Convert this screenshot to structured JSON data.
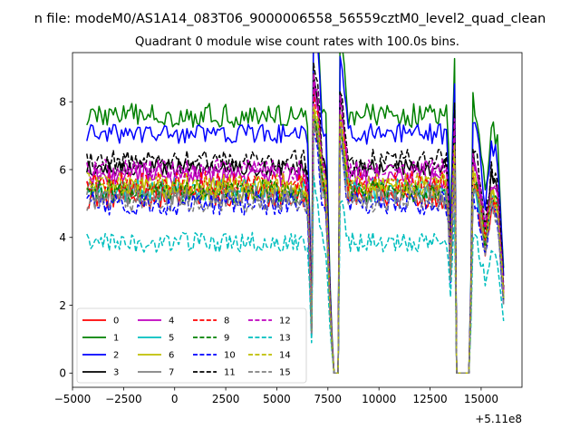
{
  "figure": {
    "suptitle": "n file: modeM0/AS1A14_083T06_9000006558_56559cztM0_level2_quad_clean",
    "offset_label": "+5.11e8"
  },
  "chart_data": {
    "type": "line",
    "title": "Quadrant 0 module wise count rates with 100.0s bins.",
    "xlabel": "",
    "ylabel": "",
    "xlim": [
      -5000,
      17000
    ],
    "ylim": [
      -0.42,
      9.45
    ],
    "x_offset": 511000000,
    "xticks": [
      -5000,
      -2500,
      0,
      2500,
      5000,
      7500,
      10000,
      12500,
      15000
    ],
    "xtick_labels": [
      "−5000",
      "−2500",
      "0",
      "2500",
      "5000",
      "7500",
      "10000",
      "12500",
      "15000"
    ],
    "yticks": [
      0,
      2,
      4,
      6,
      8
    ],
    "ytick_labels": [
      "0",
      "2",
      "4",
      "6",
      "8"
    ],
    "legend_position": "lower-left",
    "legend_columns": 4,
    "shape": {
      "x_start": -4300,
      "x_end": 16100,
      "step": 100,
      "description": "module count-rate envelope: common dips near 6700 and gaps (zero) near 7900 and 14000-14800",
      "anchor_x": [
        -4300,
        6400,
        6550,
        6700,
        6800,
        7000,
        7200,
        7400,
        7650,
        7800,
        8000,
        8100,
        8300,
        8500,
        11000,
        13350,
        13500,
        13700,
        13800,
        14450,
        14600,
        14800,
        15200,
        15500,
        15800,
        16100
      ],
      "anchor_f": [
        1.0,
        1.0,
        0.88,
        0.22,
        1.45,
        1.35,
        1.05,
        0.97,
        0.22,
        0.0,
        0.0,
        1.35,
        1.18,
        1.0,
        1.0,
        1.0,
        0.55,
        1.25,
        0.0,
        0.0,
        1.05,
        1.0,
        0.7,
        0.95,
        0.9,
        0.4
      ]
    },
    "series": [
      {
        "name": "0",
        "color": "#ff0000",
        "dash": "solid",
        "base": 5.2,
        "noise": 0.35
      },
      {
        "name": "1",
        "color": "#008000",
        "dash": "solid",
        "base": 7.6,
        "noise": 0.35
      },
      {
        "name": "2",
        "color": "#0000ff",
        "dash": "solid",
        "base": 7.05,
        "noise": 0.3
      },
      {
        "name": "3",
        "color": "#000000",
        "dash": "solid",
        "base": 6.05,
        "noise": 0.25
      },
      {
        "name": "4",
        "color": "#bf00bf",
        "dash": "solid",
        "base": 5.8,
        "noise": 0.35
      },
      {
        "name": "5",
        "color": "#00bfbf",
        "dash": "solid",
        "base": 5.4,
        "noise": 0.35
      },
      {
        "name": "6",
        "color": "#bfbf00",
        "dash": "solid",
        "base": 5.45,
        "noise": 0.35
      },
      {
        "name": "7",
        "color": "#808080",
        "dash": "solid",
        "base": 5.25,
        "noise": 0.35
      },
      {
        "name": "8",
        "color": "#ff0000",
        "dash": "dashed",
        "base": 5.6,
        "noise": 0.35
      },
      {
        "name": "9",
        "color": "#008000",
        "dash": "dashed",
        "base": 5.35,
        "noise": 0.35
      },
      {
        "name": "10",
        "color": "#0000ff",
        "dash": "dashed",
        "base": 5.0,
        "noise": 0.35
      },
      {
        "name": "11",
        "color": "#000000",
        "dash": "dashed",
        "base": 6.3,
        "noise": 0.3
      },
      {
        "name": "12",
        "color": "#bf00bf",
        "dash": "dashed",
        "base": 6.0,
        "noise": 0.3
      },
      {
        "name": "13",
        "color": "#00bfbf",
        "dash": "dashed",
        "base": 3.85,
        "noise": 0.3
      },
      {
        "name": "14",
        "color": "#bfbf00",
        "dash": "dashed",
        "base": 5.55,
        "noise": 0.35
      },
      {
        "name": "15",
        "color": "#808080",
        "dash": "dashed",
        "base": 5.1,
        "noise": 0.35
      }
    ]
  }
}
